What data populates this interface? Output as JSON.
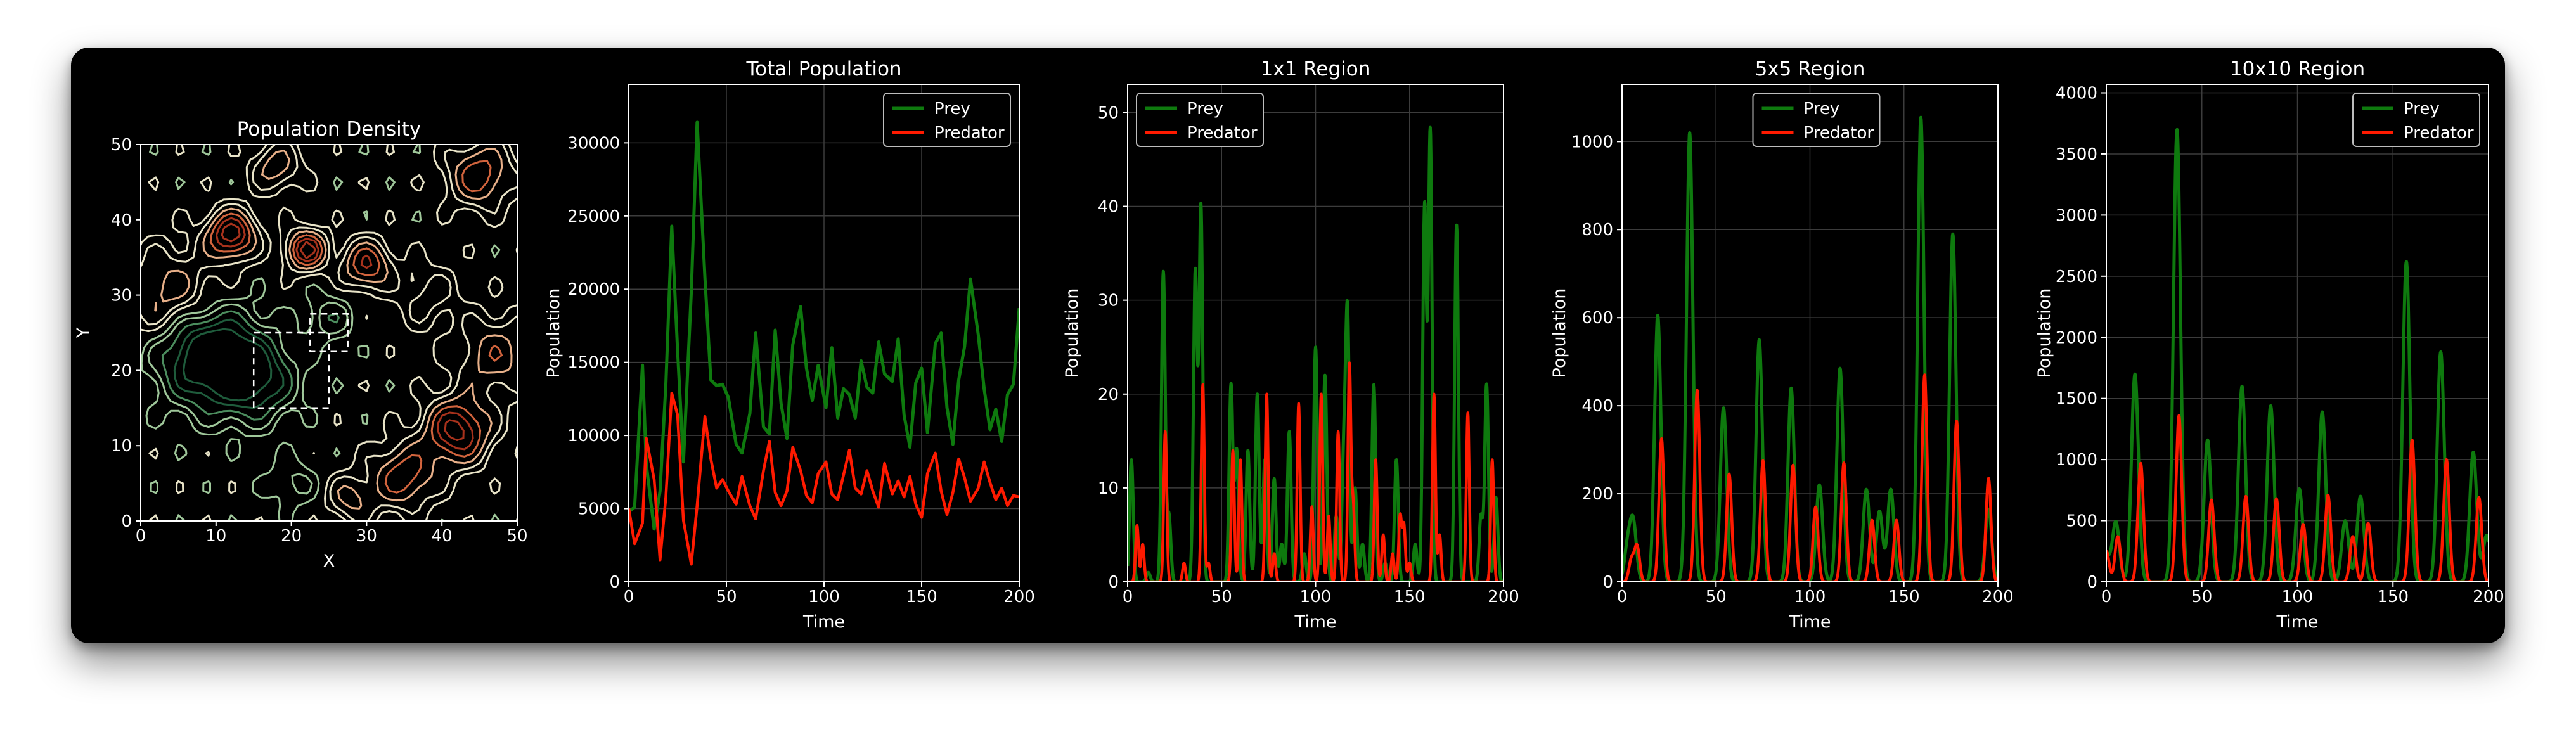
{
  "colors": {
    "background": "#000000",
    "axes": "#ffffff",
    "grid": "#3c3c3c",
    "prey": "#0e7a0e",
    "predator": "#ff1a00",
    "legend_bg": "#000000",
    "legend_border": "#bdbdbd"
  },
  "density": {
    "title": "Population Density",
    "xlabel": "X",
    "ylabel": "Y",
    "xlim": [
      0,
      50
    ],
    "ylim": [
      0,
      50
    ],
    "xticks": [
      0,
      10,
      20,
      30,
      40,
      50
    ],
    "yticks": [
      0,
      10,
      20,
      30,
      40,
      50
    ],
    "colormap": [
      "#1f5c3c",
      "#4c8d5e",
      "#9fc79a",
      "#e9e4c8",
      "#e8b089",
      "#d2643d",
      "#a8321c"
    ]
  },
  "chart_data": [
    {
      "type": "line",
      "title": "Total Population",
      "xlabel": "Time",
      "ylabel": "Population",
      "xlim": [
        0,
        200
      ],
      "ylim": [
        0,
        34000
      ],
      "xticks": [
        0,
        50,
        100,
        150,
        200
      ],
      "yticks": [
        0,
        5000,
        10000,
        15000,
        20000,
        25000,
        30000
      ],
      "grid": true,
      "legend_position": "top-right",
      "x": [
        0,
        3,
        7,
        9,
        13,
        16,
        19,
        22,
        25,
        28,
        32,
        35,
        39,
        42,
        45,
        48,
        51,
        55,
        58,
        62,
        65,
        69,
        72,
        75,
        78,
        81,
        84,
        88,
        91,
        94,
        97,
        101,
        104,
        107,
        110,
        113,
        116,
        119,
        122,
        125,
        128,
        131,
        135,
        138,
        141,
        144,
        147,
        150,
        153,
        157,
        160,
        163,
        166,
        169,
        172,
        175,
        179,
        182,
        185,
        188,
        191,
        194,
        197,
        200
      ],
      "series": [
        {
          "name": "Prey",
          "color": "#0e7a0e",
          "values": [
            4800,
            5100,
            14800,
            8000,
            3600,
            6200,
            13500,
            24300,
            15800,
            8200,
            19800,
            31400,
            20800,
            13800,
            13400,
            13500,
            12600,
            9400,
            8800,
            11500,
            17000,
            10600,
            10100,
            17200,
            12200,
            9800,
            16200,
            18800,
            14600,
            12400,
            14800,
            11900,
            16000,
            11200,
            13200,
            12800,
            11200,
            15100,
            13300,
            12900,
            16400,
            14200,
            13700,
            16600,
            11400,
            9200,
            13600,
            14600,
            10200,
            16300,
            17000,
            11900,
            9400,
            13800,
            16100,
            20700,
            16900,
            13200,
            10400,
            11800,
            9600,
            12800,
            13500,
            18700
          ]
        },
        {
          "name": "Predator",
          "color": "#ff1a00",
          "values": [
            5000,
            2600,
            4000,
            9800,
            7000,
            1500,
            5800,
            12900,
            11400,
            4200,
            1200,
            5200,
            11300,
            8400,
            6400,
            7000,
            6200,
            5300,
            7200,
            5200,
            4300,
            7600,
            9600,
            6100,
            5200,
            6200,
            9200,
            7600,
            5900,
            5400,
            7400,
            8200,
            6000,
            5600,
            7300,
            9000,
            6400,
            6000,
            7600,
            6200,
            5100,
            8100,
            6000,
            6900,
            5800,
            7200,
            5300,
            4400,
            7400,
            8800,
            6200,
            4600,
            6100,
            8400,
            7100,
            5500,
            6400,
            8200,
            6800,
            5600,
            6400,
            5200,
            5900,
            5800
          ]
        }
      ]
    },
    {
      "type": "line",
      "title": "1x1 Region",
      "xlabel": "Time",
      "ylabel": "Population",
      "xlim": [
        0,
        200
      ],
      "ylim": [
        0,
        53
      ],
      "xticks": [
        0,
        50,
        100,
        150,
        200
      ],
      "yticks": [
        0,
        10,
        20,
        30,
        40,
        50
      ],
      "grid": true,
      "legend_position": "top-left",
      "peak_width": 1.4,
      "prey_peaks": [
        [
          2,
          13
        ],
        [
          11,
          1
        ],
        [
          19,
          33
        ],
        [
          22,
          7
        ],
        [
          36,
          33
        ],
        [
          39,
          40
        ],
        [
          55,
          21
        ],
        [
          58,
          14
        ],
        [
          64,
          14
        ],
        [
          69,
          20
        ],
        [
          73,
          13
        ],
        [
          78,
          11
        ],
        [
          82,
          4
        ],
        [
          86,
          16
        ],
        [
          94,
          3
        ],
        [
          100,
          25
        ],
        [
          105,
          22
        ],
        [
          111,
          7
        ],
        [
          115,
          13
        ],
        [
          117,
          28
        ],
        [
          121,
          10
        ],
        [
          125,
          4
        ],
        [
          131,
          21
        ],
        [
          137,
          2
        ],
        [
          143,
          13
        ],
        [
          153,
          4
        ],
        [
          158,
          40
        ],
        [
          161,
          48
        ],
        [
          175,
          38
        ],
        [
          188,
          7
        ],
        [
          191,
          21
        ],
        [
          196,
          9
        ]
      ],
      "pred_peaks": [
        [
          5,
          6
        ],
        [
          8,
          4
        ],
        [
          20,
          16
        ],
        [
          30,
          2
        ],
        [
          40,
          21
        ],
        [
          43,
          2
        ],
        [
          56,
          14
        ],
        [
          60,
          13
        ],
        [
          74,
          20
        ],
        [
          78,
          3
        ],
        [
          91,
          19
        ],
        [
          98,
          8
        ],
        [
          103,
          20
        ],
        [
          107,
          7
        ],
        [
          112,
          16
        ],
        [
          118,
          23
        ],
        [
          120,
          8
        ],
        [
          132,
          13
        ],
        [
          136,
          5
        ],
        [
          141,
          3
        ],
        [
          145,
          7
        ],
        [
          147,
          6
        ],
        [
          150,
          2
        ],
        [
          163,
          20
        ],
        [
          166,
          5
        ],
        [
          181,
          18
        ],
        [
          194,
          13
        ]
      ]
    },
    {
      "type": "line",
      "title": "5x5 Region",
      "xlabel": "Time",
      "ylabel": "Population",
      "xlim": [
        0,
        200
      ],
      "ylim": [
        0,
        1130
      ],
      "xticks": [
        0,
        50,
        100,
        150,
        200
      ],
      "yticks": [
        0,
        200,
        400,
        600,
        800,
        1000
      ],
      "grid": true,
      "legend_position": "top-center",
      "peak_width": 2.4,
      "prey_peaks": [
        [
          3,
          80
        ],
        [
          6,
          130
        ],
        [
          19,
          605
        ],
        [
          36,
          1020
        ],
        [
          54,
          395
        ],
        [
          73,
          550
        ],
        [
          90,
          440
        ],
        [
          105,
          220
        ],
        [
          116,
          485
        ],
        [
          130,
          210
        ],
        [
          137,
          160
        ],
        [
          143,
          210
        ],
        [
          159,
          1055
        ],
        [
          176,
          790
        ],
        [
          195,
          165
        ]
      ],
      "pred_peaks": [
        [
          5,
          50
        ],
        [
          8,
          80
        ],
        [
          21,
          325
        ],
        [
          40,
          435
        ],
        [
          57,
          245
        ],
        [
          75,
          275
        ],
        [
          91,
          265
        ],
        [
          103,
          170
        ],
        [
          118,
          270
        ],
        [
          133,
          140
        ],
        [
          146,
          140
        ],
        [
          161,
          470
        ],
        [
          178,
          365
        ],
        [
          195,
          235
        ]
      ]
    },
    {
      "type": "line",
      "title": "10x10 Region",
      "xlabel": "Time",
      "ylabel": "Population",
      "xlim": [
        0,
        200
      ],
      "ylim": [
        0,
        4070
      ],
      "xticks": [
        0,
        50,
        100,
        150,
        200
      ],
      "yticks": [
        0,
        500,
        1000,
        1500,
        2000,
        2500,
        3000,
        3500,
        4000
      ],
      "grid": true,
      "legend_position": "top-right",
      "peak_width": 2.6,
      "prey_peaks": [
        [
          0,
          200
        ],
        [
          5,
          490
        ],
        [
          15,
          1700
        ],
        [
          37,
          3700
        ],
        [
          53,
          1160
        ],
        [
          71,
          1600
        ],
        [
          86,
          1440
        ],
        [
          101,
          760
        ],
        [
          113,
          1390
        ],
        [
          125,
          500
        ],
        [
          133,
          700
        ],
        [
          157,
          2620
        ],
        [
          175,
          1880
        ],
        [
          192,
          1060
        ],
        [
          199,
          380
        ]
      ],
      "pred_peaks": [
        [
          0,
          250
        ],
        [
          6,
          370
        ],
        [
          18,
          970
        ],
        [
          38,
          1360
        ],
        [
          55,
          670
        ],
        [
          73,
          700
        ],
        [
          89,
          680
        ],
        [
          103,
          470
        ],
        [
          116,
          710
        ],
        [
          129,
          370
        ],
        [
          137,
          480
        ],
        [
          160,
          1160
        ],
        [
          178,
          1000
        ],
        [
          195,
          690
        ]
      ]
    }
  ]
}
